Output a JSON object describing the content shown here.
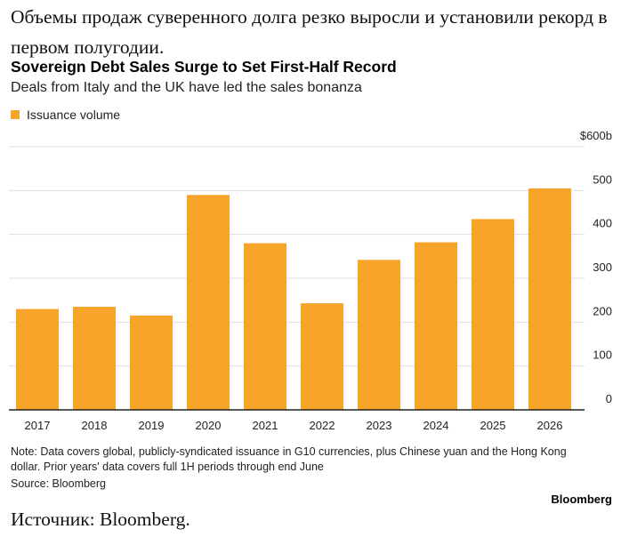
{
  "header": {
    "ru_title": "Объемы продаж суверенного долга резко выросли и установили рекорд в первом полугодии.",
    "ru_source": "Источник: Bloomberg."
  },
  "chart_data": {
    "type": "bar",
    "title": "Sovereign Debt Sales Surge to Set First-Half Record",
    "subtitle": "Deals from Italy and the UK have led the sales bonanza",
    "categories": [
      "2017",
      "2018",
      "2019",
      "2020",
      "2021",
      "2022",
      "2023",
      "2024",
      "2025",
      "2026"
    ],
    "series": [
      {
        "name": "Issuance volume",
        "values": [
          230,
          235,
          215,
          490,
          380,
          243,
          342,
          382,
          435,
          505
        ]
      }
    ],
    "ylim": [
      0,
      600
    ],
    "yticks": [
      "0",
      "100",
      "200",
      "300",
      "400",
      "500",
      "$600b"
    ],
    "ytick_values": [
      0,
      100,
      200,
      300,
      400,
      500,
      600
    ],
    "grid": true,
    "legend_position": "top-left",
    "color": "#F7A52A",
    "note": "Note: Data covers global, publicly-syndicated issuance in G10 currencies, plus Chinese yuan and the Hong Kong dollar. Prior years' data covers full 1H periods through end June",
    "source": "Source: Bloomberg",
    "brand": "Bloomberg"
  }
}
